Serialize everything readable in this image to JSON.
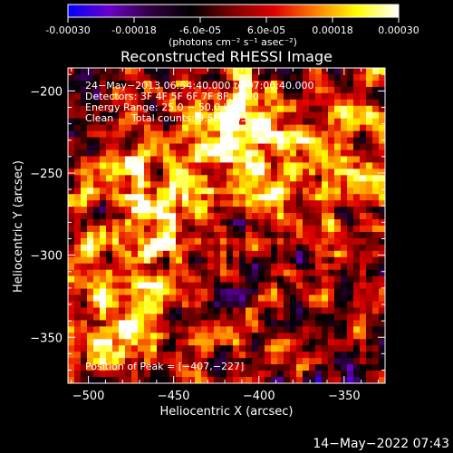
{
  "colorbar": {
    "tick_labels": [
      "-0.00030",
      "-0.00018",
      "-6.0e-05",
      "6.0e-05",
      "0.00018",
      "0.00030"
    ],
    "tick_values": [
      -0.0003,
      -0.00018,
      -6e-05,
      6e-05,
      0.00018,
      0.0003
    ],
    "range": [
      -0.0003,
      0.0003
    ],
    "units_label": "(photons cm⁻² s⁻¹ asec⁻²)",
    "colormap": [
      "#0000ff",
      "#6a00c8",
      "#300040",
      "#000000",
      "#800000",
      "#e00000",
      "#ff8000",
      "#ffff00",
      "#ffffff"
    ]
  },
  "chart_data": {
    "type": "heatmap",
    "title": "Reconstructed RHESSI Image",
    "xlabel": "Heliocentric X (arcsec)",
    "ylabel": "Heliocentric Y (arcsec)",
    "xlim": [
      -512,
      -326
    ],
    "ylim": [
      -378,
      -186
    ],
    "x_ticks": [
      -500,
      -450,
      -400,
      -350
    ],
    "y_ticks": [
      -200,
      -250,
      -300,
      -350
    ],
    "x_tick_labels": [
      "−500",
      "−450",
      "−400",
      "−350"
    ],
    "y_tick_labels": [
      "−200",
      "−250",
      "−300",
      "−350"
    ],
    "annotations": [
      "24−May−2013 06:54:40.000 to 07:00:40.000",
      "Detectors: 3F 4F 5F 6F 7F 8F, Att 0",
      "Energy Range: 25.0 − 50.0 keV",
      "Clean",
      "Total counts: 9.56E+03"
    ],
    "peak_label": "Position of Peak = [−407,−227]",
    "peak_position": [
      -407,
      -227
    ],
    "bright_regions": [
      {
        "x": -460,
        "y": -270,
        "level": 0.00028
      },
      {
        "x": -407,
        "y": -227,
        "level": 0.0003
      },
      {
        "x": -490,
        "y": -340,
        "level": 0.0002
      },
      {
        "x": -350,
        "y": -250,
        "level": 0.00016
      }
    ]
  },
  "footer_timestamp": "14−May−2022 07:43"
}
